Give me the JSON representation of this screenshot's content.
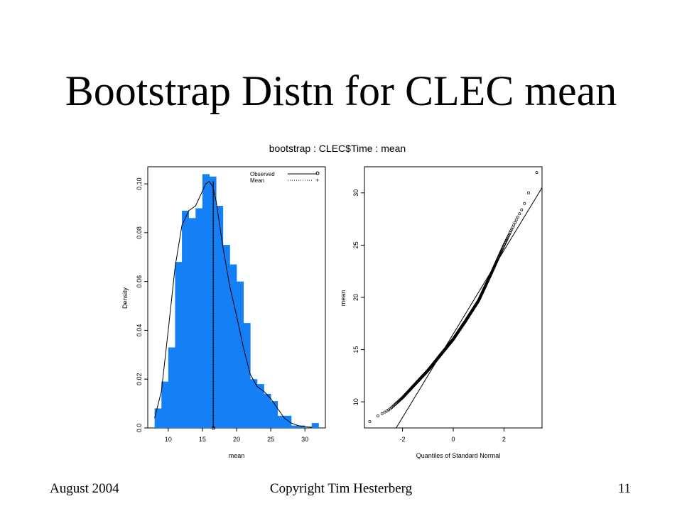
{
  "slide": {
    "title": "Bootstrap Distn for CLEC mean",
    "plot_title": "bootstrap : CLEC$Time : mean"
  },
  "footer": {
    "date": "August 2004",
    "copyright": "Copyright Tim Hesterberg",
    "page": "11"
  },
  "colors": {
    "bar_fill": "#1580f5",
    "line": "#000000"
  },
  "chart_data": [
    {
      "type": "bar",
      "subtype": "histogram-with-density",
      "xlabel": "mean",
      "ylabel": "Density",
      "xlim": [
        7,
        33
      ],
      "ylim": [
        0,
        0.107
      ],
      "xticks": [
        10,
        15,
        20,
        25,
        30
      ],
      "yticks": [
        0.0,
        0.02,
        0.04,
        0.06,
        0.08,
        0.1
      ],
      "ytick_labels": [
        "0.0",
        "0.02",
        "0.04",
        "0.06",
        "0.08",
        "0.10"
      ],
      "bin_width": 1,
      "bins": [
        {
          "x0": 8,
          "x1": 9,
          "density": 0.008
        },
        {
          "x0": 9,
          "x1": 10,
          "density": 0.019
        },
        {
          "x0": 10,
          "x1": 11,
          "density": 0.033
        },
        {
          "x0": 11,
          "x1": 12,
          "density": 0.068
        },
        {
          "x0": 12,
          "x1": 13,
          "density": 0.089
        },
        {
          "x0": 13,
          "x1": 14,
          "density": 0.086
        },
        {
          "x0": 14,
          "x1": 15,
          "density": 0.09
        },
        {
          "x0": 15,
          "x1": 16,
          "density": 0.104
        },
        {
          "x0": 16,
          "x1": 17,
          "density": 0.103
        },
        {
          "x0": 17,
          "x1": 18,
          "density": 0.091
        },
        {
          "x0": 18,
          "x1": 19,
          "density": 0.075
        },
        {
          "x0": 19,
          "x1": 20,
          "density": 0.067
        },
        {
          "x0": 20,
          "x1": 21,
          "density": 0.06
        },
        {
          "x0": 21,
          "x1": 22,
          "density": 0.043
        },
        {
          "x0": 22,
          "x1": 23,
          "density": 0.02
        },
        {
          "x0": 23,
          "x1": 24,
          "density": 0.018
        },
        {
          "x0": 24,
          "x1": 25,
          "density": 0.014
        },
        {
          "x0": 25,
          "x1": 26,
          "density": 0.011
        },
        {
          "x0": 26,
          "x1": 27,
          "density": 0.005
        },
        {
          "x0": 27,
          "x1": 28,
          "density": 0.005
        },
        {
          "x0": 28,
          "x1": 29,
          "density": 0.001
        },
        {
          "x0": 29,
          "x1": 30,
          "density": 0.001
        },
        {
          "x0": 31,
          "x1": 32,
          "density": 0.002
        }
      ],
      "density_curve": {
        "x": [
          8,
          9,
          10,
          11,
          12,
          13,
          14,
          15,
          15.5,
          16,
          16.5,
          17,
          18,
          19,
          20,
          21,
          22,
          23,
          24,
          25,
          26,
          27,
          28,
          29,
          30,
          31
        ],
        "y": [
          0.004,
          0.015,
          0.04,
          0.066,
          0.083,
          0.089,
          0.091,
          0.097,
          0.1,
          0.101,
          0.099,
          0.093,
          0.074,
          0.058,
          0.046,
          0.033,
          0.022,
          0.017,
          0.015,
          0.012,
          0.008,
          0.004,
          0.002,
          0.001,
          0.0005,
          0.0003
        ]
      },
      "observed": 16.5,
      "mean": 16.5,
      "legend": {
        "position": "top-right",
        "entries": [
          {
            "label": "Observed",
            "style": "solid",
            "marker": "o"
          },
          {
            "label": "Mean",
            "style": "dotted",
            "marker": "+"
          }
        ]
      }
    },
    {
      "type": "scatter",
      "subtype": "normal-qq",
      "xlabel": "Quantiles of Standard Normal",
      "ylabel": "mean",
      "xlim": [
        -3.5,
        3.5
      ],
      "ylim": [
        7.5,
        32.5
      ],
      "xticks": [
        -2,
        0,
        2
      ],
      "yticks": [
        10,
        15,
        20,
        25,
        30
      ],
      "n": 1000,
      "quantile_anchors": {
        "z": [
          -3.3,
          -3.0,
          -2.5,
          -2.0,
          -1.5,
          -1.0,
          -0.5,
          0.0,
          0.5,
          1.0,
          1.5,
          2.0,
          2.5,
          2.7,
          2.9,
          3.1,
          3.3
        ],
        "y": [
          8.1,
          8.6,
          9.3,
          10.4,
          11.7,
          13.0,
          14.5,
          16.0,
          17.8,
          19.7,
          22.3,
          25.0,
          27.5,
          28.4,
          29.5,
          31.0,
          32.0
        ]
      },
      "reference_line": {
        "intercept": 16.5,
        "slope": 4.0
      }
    }
  ]
}
